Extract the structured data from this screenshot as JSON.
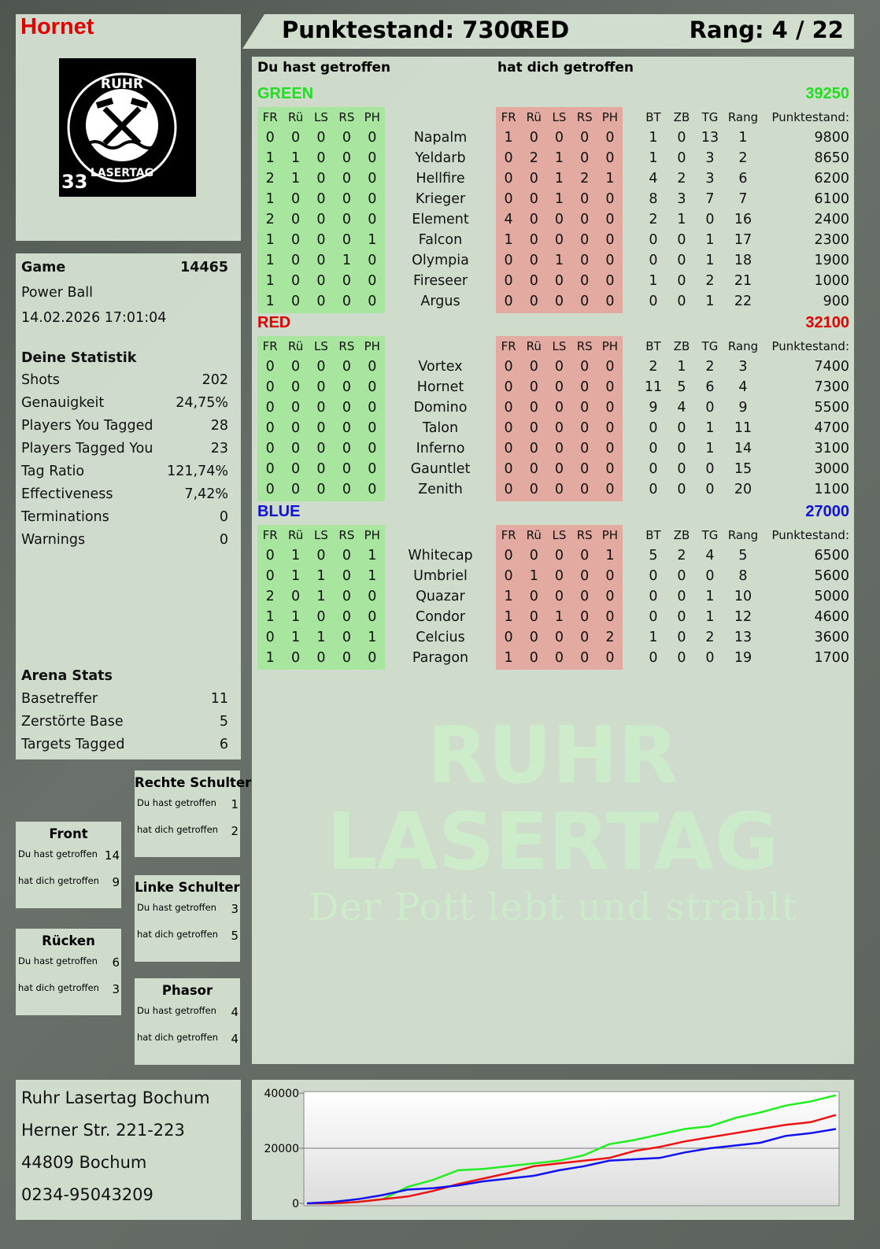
{
  "header": {
    "player": "Hornet",
    "score_label": "Punktestand: 7300",
    "team": "RED",
    "rank_label": "Rang: 4 / 22"
  },
  "logo": {
    "text_top": "RUHR",
    "text_bottom": "LASERTAG",
    "number": "33"
  },
  "game": {
    "label": "Game",
    "id": "14465",
    "mode": "Power Ball",
    "datetime": "14.02.2026 17:01:04"
  },
  "stats": {
    "title": "Deine Statistik",
    "items": [
      {
        "label": "Shots",
        "value": "202"
      },
      {
        "label": "Genauigkeit",
        "value": "24,75%"
      },
      {
        "label": "Players You Tagged",
        "value": "28"
      },
      {
        "label": "Players Tagged You",
        "value": "23"
      },
      {
        "label": "Tag Ratio",
        "value": "121,74%"
      },
      {
        "label": "Effectiveness",
        "value": "7,42%"
      },
      {
        "label": "Terminations",
        "value": "0"
      },
      {
        "label": "Warnings",
        "value": "0"
      }
    ]
  },
  "arena": {
    "title": "Arena Stats",
    "items": [
      {
        "label": "Basetreffer",
        "value": "11"
      },
      {
        "label": "Zerstörte Base",
        "value": "5"
      },
      {
        "label": "Targets Tagged",
        "value": "6"
      }
    ]
  },
  "hitzones": [
    {
      "name": "Rechte Schulter",
      "you_label": "Du hast getroffen",
      "you": "1",
      "them_label": "hat dich getroffen",
      "them": "2"
    },
    {
      "name": "Front",
      "you_label": "Du hast getroffen",
      "you": "14",
      "them_label": "hat dich getroffen",
      "them": "9"
    },
    {
      "name": "Linke Schulter",
      "you_label": "Du hast getroffen",
      "you": "3",
      "them_label": "hat dich getroffen",
      "them": "5"
    },
    {
      "name": "Rücken",
      "you_label": "Du hast getroffen",
      "you": "6",
      "them_label": "hat dich getroffen",
      "them": "3"
    },
    {
      "name": "Phasor",
      "you_label": "Du hast getroffen",
      "you": "4",
      "them_label": "hat dich getroffen",
      "them": "4"
    }
  ],
  "address": [
    "Ruhr Lasertag Bochum",
    "Herner Str. 221-223",
    "44809 Bochum",
    "0234-95043209"
  ],
  "main": {
    "you_hit_label": "Du hast getroffen",
    "hit_you_label": "hat dich getroffen",
    "zone_headers": [
      "FR",
      "Rü",
      "LS",
      "RS",
      "PH"
    ],
    "stat_headers": [
      "BT",
      "ZB",
      "TG",
      "Rang",
      "Punktestand:"
    ],
    "teams": [
      {
        "name": "GREEN",
        "score": "39250",
        "color": "#22dd22",
        "players": [
          {
            "n": "Napalm",
            "g": [
              0,
              0,
              0,
              0,
              0
            ],
            "r": [
              1,
              0,
              0,
              0,
              0
            ],
            "s": [
              1,
              0,
              13,
              1,
              9800
            ]
          },
          {
            "n": "Yeldarb",
            "g": [
              1,
              1,
              0,
              0,
              0
            ],
            "r": [
              0,
              2,
              1,
              0,
              0
            ],
            "s": [
              1,
              0,
              3,
              2,
              8650
            ]
          },
          {
            "n": "Hellfire",
            "g": [
              2,
              1,
              0,
              0,
              0
            ],
            "r": [
              0,
              0,
              1,
              2,
              1
            ],
            "s": [
              4,
              2,
              3,
              6,
              6200
            ]
          },
          {
            "n": "Krieger",
            "g": [
              1,
              0,
              0,
              0,
              0
            ],
            "r": [
              0,
              0,
              1,
              0,
              0
            ],
            "s": [
              8,
              3,
              7,
              7,
              6100
            ]
          },
          {
            "n": "Element",
            "g": [
              2,
              0,
              0,
              0,
              0
            ],
            "r": [
              4,
              0,
              0,
              0,
              0
            ],
            "s": [
              2,
              1,
              0,
              16,
              2400
            ]
          },
          {
            "n": "Falcon",
            "g": [
              1,
              0,
              0,
              0,
              1
            ],
            "r": [
              1,
              0,
              0,
              0,
              0
            ],
            "s": [
              0,
              0,
              1,
              17,
              2300
            ]
          },
          {
            "n": "Olympia",
            "g": [
              1,
              0,
              0,
              1,
              0
            ],
            "r": [
              0,
              0,
              1,
              0,
              0
            ],
            "s": [
              0,
              0,
              1,
              18,
              1900
            ]
          },
          {
            "n": "Fireseer",
            "g": [
              1,
              0,
              0,
              0,
              0
            ],
            "r": [
              0,
              0,
              0,
              0,
              0
            ],
            "s": [
              1,
              0,
              2,
              21,
              1000
            ]
          },
          {
            "n": "Argus",
            "g": [
              1,
              0,
              0,
              0,
              0
            ],
            "r": [
              0,
              0,
              0,
              0,
              0
            ],
            "s": [
              0,
              0,
              1,
              22,
              900
            ]
          }
        ]
      },
      {
        "name": "RED",
        "score": "32100",
        "color": "#e00000",
        "players": [
          {
            "n": "Vortex",
            "g": [
              0,
              0,
              0,
              0,
              0
            ],
            "r": [
              0,
              0,
              0,
              0,
              0
            ],
            "s": [
              2,
              1,
              2,
              3,
              7400
            ]
          },
          {
            "n": "Hornet",
            "g": [
              0,
              0,
              0,
              0,
              0
            ],
            "r": [
              0,
              0,
              0,
              0,
              0
            ],
            "s": [
              11,
              5,
              6,
              4,
              7300
            ]
          },
          {
            "n": "Domino",
            "g": [
              0,
              0,
              0,
              0,
              0
            ],
            "r": [
              0,
              0,
              0,
              0,
              0
            ],
            "s": [
              9,
              4,
              0,
              9,
              5500
            ]
          },
          {
            "n": "Talon",
            "g": [
              0,
              0,
              0,
              0,
              0
            ],
            "r": [
              0,
              0,
              0,
              0,
              0
            ],
            "s": [
              0,
              0,
              1,
              11,
              4700
            ]
          },
          {
            "n": "Inferno",
            "g": [
              0,
              0,
              0,
              0,
              0
            ],
            "r": [
              0,
              0,
              0,
              0,
              0
            ],
            "s": [
              0,
              0,
              1,
              14,
              3100
            ]
          },
          {
            "n": "Gauntlet",
            "g": [
              0,
              0,
              0,
              0,
              0
            ],
            "r": [
              0,
              0,
              0,
              0,
              0
            ],
            "s": [
              0,
              0,
              0,
              15,
              3000
            ]
          },
          {
            "n": "Zenith",
            "g": [
              0,
              0,
              0,
              0,
              0
            ],
            "r": [
              0,
              0,
              0,
              0,
              0
            ],
            "s": [
              0,
              0,
              0,
              20,
              1100
            ]
          }
        ]
      },
      {
        "name": "BLUE",
        "score": "27000",
        "color": "#1010dd",
        "players": [
          {
            "n": "Whitecap",
            "g": [
              0,
              1,
              0,
              0,
              1
            ],
            "r": [
              0,
              0,
              0,
              0,
              1
            ],
            "s": [
              5,
              2,
              4,
              5,
              6500
            ]
          },
          {
            "n": "Umbriel",
            "g": [
              0,
              1,
              1,
              0,
              1
            ],
            "r": [
              0,
              1,
              0,
              0,
              0
            ],
            "s": [
              0,
              0,
              0,
              8,
              5600
            ]
          },
          {
            "n": "Quazar",
            "g": [
              2,
              0,
              1,
              0,
              0
            ],
            "r": [
              1,
              0,
              0,
              0,
              0
            ],
            "s": [
              0,
              0,
              1,
              10,
              5000
            ]
          },
          {
            "n": "Condor",
            "g": [
              1,
              1,
              0,
              0,
              0
            ],
            "r": [
              1,
              0,
              1,
              0,
              0
            ],
            "s": [
              0,
              0,
              1,
              12,
              4600
            ]
          },
          {
            "n": "Celcius",
            "g": [
              0,
              1,
              1,
              0,
              1
            ],
            "r": [
              0,
              0,
              0,
              0,
              2
            ],
            "s": [
              1,
              0,
              2,
              13,
              3600
            ]
          },
          {
            "n": "Paragon",
            "g": [
              1,
              0,
              0,
              0,
              0
            ],
            "r": [
              1,
              0,
              0,
              0,
              0
            ],
            "s": [
              0,
              0,
              0,
              19,
              1700
            ]
          }
        ]
      }
    ]
  },
  "watermark": {
    "line1": "RUHR",
    "line2": "LASERTAG",
    "line3": "Der Pott lebt und strahlt"
  },
  "chart_data": {
    "type": "line",
    "ylim": [
      0,
      40000
    ],
    "yticks": [
      "0",
      "20000",
      "40000"
    ],
    "grid": true,
    "legend": "none",
    "series": [
      {
        "color": "#22ee22",
        "values": [
          0,
          0,
          500,
          1500,
          6000,
          8500,
          12000,
          12500,
          13500,
          14500,
          15500,
          17500,
          21500,
          23000,
          25000,
          27000,
          28000,
          31000,
          33000,
          35500,
          37000,
          39250
        ]
      },
      {
        "color": "#ee1111",
        "values": [
          0,
          0,
          500,
          1500,
          2500,
          4500,
          7000,
          9000,
          11000,
          13500,
          14500,
          15500,
          16500,
          19000,
          20500,
          22500,
          24000,
          25500,
          27000,
          28500,
          29500,
          32100
        ]
      },
      {
        "color": "#1111ee",
        "values": [
          0,
          500,
          1500,
          3000,
          5000,
          5500,
          6500,
          8000,
          9000,
          10000,
          12000,
          13500,
          15500,
          16000,
          16500,
          18500,
          20000,
          21000,
          22000,
          24500,
          25500,
          27000
        ]
      }
    ]
  }
}
